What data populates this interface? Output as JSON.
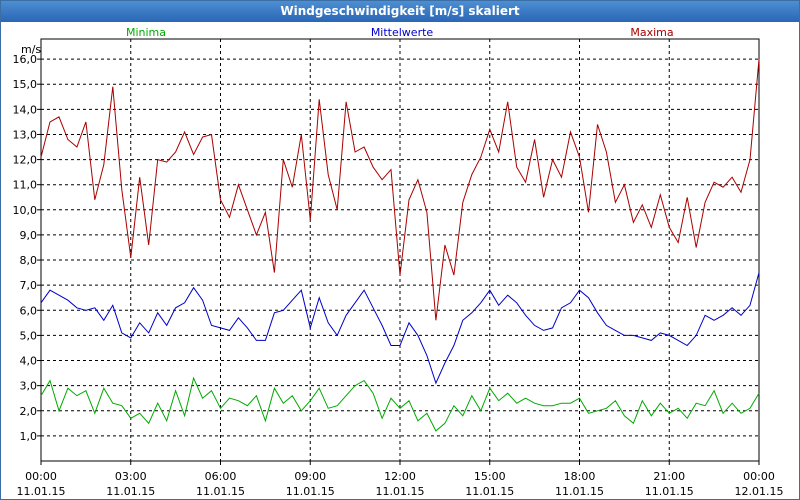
{
  "window": {
    "title": "Windgeschwindigkeit [m/s] skaliert"
  },
  "chart_data": {
    "type": "line",
    "title": "Windgeschwindigkeit [m/s] skaliert",
    "ylabel": "m/s",
    "ylim": [
      0,
      16.8
    ],
    "xlim": [
      0,
      24
    ],
    "y_ticks": [
      1,
      2,
      3,
      4,
      5,
      6,
      7,
      8,
      9,
      10,
      11,
      12,
      13,
      14,
      15,
      16
    ],
    "y_tick_labels": [
      "1,0",
      "2,0",
      "3,0",
      "4,0",
      "5,0",
      "6,0",
      "7,0",
      "8,0",
      "9,0",
      "10,0",
      "11,0",
      "12,0",
      "13,0",
      "14,0",
      "15,0",
      "16,0"
    ],
    "x_ticks": [
      {
        "time": "00:00",
        "date": "11.01.15"
      },
      {
        "time": "03:00",
        "date": "11.01.15"
      },
      {
        "time": "06:00",
        "date": "11.01.15"
      },
      {
        "time": "09:00",
        "date": "11.01.15"
      },
      {
        "time": "12:00",
        "date": "11.01.15"
      },
      {
        "time": "15:00",
        "date": "11.01.15"
      },
      {
        "time": "18:00",
        "date": "11.01.15"
      },
      {
        "time": "21:00",
        "date": "11.01.15"
      },
      {
        "time": "00:00",
        "date": "12.01.15"
      }
    ],
    "grid": true,
    "series": [
      {
        "name": "Minima",
        "color": "#00aa00",
        "points": [
          [
            0,
            2.6
          ],
          [
            0.3,
            3.2
          ],
          [
            0.6,
            2.0
          ],
          [
            0.9,
            2.9
          ],
          [
            1.2,
            2.6
          ],
          [
            1.5,
            2.8
          ],
          [
            1.8,
            1.9
          ],
          [
            2.1,
            2.9
          ],
          [
            2.4,
            2.3
          ],
          [
            2.7,
            2.2
          ],
          [
            3.0,
            1.7
          ],
          [
            3.3,
            1.9
          ],
          [
            3.6,
            1.5
          ],
          [
            3.9,
            2.3
          ],
          [
            4.2,
            1.6
          ],
          [
            4.5,
            2.8
          ],
          [
            4.8,
            1.8
          ],
          [
            5.1,
            3.3
          ],
          [
            5.4,
            2.5
          ],
          [
            5.7,
            2.8
          ],
          [
            6.0,
            2.1
          ],
          [
            6.3,
            2.5
          ],
          [
            6.6,
            2.4
          ],
          [
            6.9,
            2.2
          ],
          [
            7.2,
            2.6
          ],
          [
            7.5,
            1.6
          ],
          [
            7.8,
            2.9
          ],
          [
            8.1,
            2.3
          ],
          [
            8.4,
            2.6
          ],
          [
            8.7,
            2.0
          ],
          [
            9.0,
            2.4
          ],
          [
            9.3,
            2.9
          ],
          [
            9.6,
            2.1
          ],
          [
            9.9,
            2.2
          ],
          [
            10.2,
            2.6
          ],
          [
            10.5,
            3.0
          ],
          [
            10.8,
            3.2
          ],
          [
            11.1,
            2.7
          ],
          [
            11.4,
            1.7
          ],
          [
            11.7,
            2.5
          ],
          [
            12.0,
            2.1
          ],
          [
            12.3,
            2.4
          ],
          [
            12.6,
            1.6
          ],
          [
            12.9,
            1.9
          ],
          [
            13.2,
            1.2
          ],
          [
            13.5,
            1.5
          ],
          [
            13.8,
            2.2
          ],
          [
            14.1,
            1.8
          ],
          [
            14.4,
            2.6
          ],
          [
            14.7,
            2.0
          ],
          [
            15.0,
            2.9
          ],
          [
            15.3,
            2.4
          ],
          [
            15.6,
            2.7
          ],
          [
            15.9,
            2.3
          ],
          [
            16.2,
            2.5
          ],
          [
            16.5,
            2.3
          ],
          [
            16.8,
            2.2
          ],
          [
            17.1,
            2.2
          ],
          [
            17.4,
            2.3
          ],
          [
            17.7,
            2.3
          ],
          [
            18.0,
            2.5
          ],
          [
            18.3,
            1.9
          ],
          [
            18.6,
            2.0
          ],
          [
            18.9,
            2.1
          ],
          [
            19.2,
            2.4
          ],
          [
            19.5,
            1.8
          ],
          [
            19.8,
            1.5
          ],
          [
            20.1,
            2.4
          ],
          [
            20.4,
            1.8
          ],
          [
            20.7,
            2.3
          ],
          [
            21.0,
            1.9
          ],
          [
            21.3,
            2.1
          ],
          [
            21.6,
            1.7
          ],
          [
            21.9,
            2.3
          ],
          [
            22.2,
            2.2
          ],
          [
            22.5,
            2.8
          ],
          [
            22.8,
            1.9
          ],
          [
            23.1,
            2.3
          ],
          [
            23.4,
            1.9
          ],
          [
            23.7,
            2.1
          ],
          [
            24.0,
            2.7
          ]
        ]
      },
      {
        "name": "Mittelwerte",
        "color": "#0000c8",
        "points": [
          [
            0,
            6.3
          ],
          [
            0.3,
            6.8
          ],
          [
            0.6,
            6.6
          ],
          [
            0.9,
            6.4
          ],
          [
            1.2,
            6.1
          ],
          [
            1.5,
            6.0
          ],
          [
            1.8,
            6.1
          ],
          [
            2.1,
            5.6
          ],
          [
            2.4,
            6.2
          ],
          [
            2.7,
            5.1
          ],
          [
            3.0,
            4.9
          ],
          [
            3.3,
            5.5
          ],
          [
            3.6,
            5.1
          ],
          [
            3.9,
            5.9
          ],
          [
            4.2,
            5.4
          ],
          [
            4.5,
            6.1
          ],
          [
            4.8,
            6.3
          ],
          [
            5.1,
            6.9
          ],
          [
            5.4,
            6.4
          ],
          [
            5.7,
            5.4
          ],
          [
            6.0,
            5.3
          ],
          [
            6.3,
            5.2
          ],
          [
            6.6,
            5.7
          ],
          [
            6.9,
            5.3
          ],
          [
            7.2,
            4.8
          ],
          [
            7.5,
            4.8
          ],
          [
            7.8,
            5.9
          ],
          [
            8.1,
            6.0
          ],
          [
            8.4,
            6.4
          ],
          [
            8.7,
            6.8
          ],
          [
            9.0,
            5.3
          ],
          [
            9.3,
            6.5
          ],
          [
            9.6,
            5.5
          ],
          [
            9.9,
            5.0
          ],
          [
            10.2,
            5.8
          ],
          [
            10.5,
            6.3
          ],
          [
            10.8,
            6.8
          ],
          [
            11.1,
            6.1
          ],
          [
            11.4,
            5.4
          ],
          [
            11.7,
            4.6
          ],
          [
            12.0,
            4.6
          ],
          [
            12.3,
            5.5
          ],
          [
            12.6,
            5.0
          ],
          [
            12.9,
            4.2
          ],
          [
            13.2,
            3.1
          ],
          [
            13.5,
            3.9
          ],
          [
            13.8,
            4.6
          ],
          [
            14.1,
            5.6
          ],
          [
            14.4,
            5.9
          ],
          [
            14.7,
            6.3
          ],
          [
            15.0,
            6.8
          ],
          [
            15.3,
            6.2
          ],
          [
            15.6,
            6.6
          ],
          [
            15.9,
            6.3
          ],
          [
            16.2,
            5.8
          ],
          [
            16.5,
            5.4
          ],
          [
            16.8,
            5.2
          ],
          [
            17.1,
            5.3
          ],
          [
            17.4,
            6.1
          ],
          [
            17.7,
            6.3
          ],
          [
            18.0,
            6.8
          ],
          [
            18.3,
            6.5
          ],
          [
            18.6,
            5.9
          ],
          [
            18.9,
            5.4
          ],
          [
            19.2,
            5.2
          ],
          [
            19.5,
            5.0
          ],
          [
            19.8,
            5.0
          ],
          [
            20.1,
            4.9
          ],
          [
            20.4,
            4.8
          ],
          [
            20.7,
            5.1
          ],
          [
            21.0,
            5.0
          ],
          [
            21.3,
            4.8
          ],
          [
            21.6,
            4.6
          ],
          [
            21.9,
            5.0
          ],
          [
            22.2,
            5.8
          ],
          [
            22.5,
            5.6
          ],
          [
            22.8,
            5.8
          ],
          [
            23.1,
            6.1
          ],
          [
            23.4,
            5.8
          ],
          [
            23.7,
            6.2
          ],
          [
            24.0,
            7.5
          ]
        ]
      },
      {
        "name": "Maxima",
        "color": "#aa0000",
        "points": [
          [
            0,
            12.1
          ],
          [
            0.3,
            13.5
          ],
          [
            0.6,
            13.7
          ],
          [
            0.9,
            12.8
          ],
          [
            1.2,
            12.5
          ],
          [
            1.5,
            13.5
          ],
          [
            1.8,
            10.4
          ],
          [
            2.1,
            11.8
          ],
          [
            2.4,
            14.9
          ],
          [
            2.7,
            10.8
          ],
          [
            3.0,
            8.1
          ],
          [
            3.3,
            11.3
          ],
          [
            3.6,
            8.6
          ],
          [
            3.9,
            12.0
          ],
          [
            4.2,
            11.9
          ],
          [
            4.5,
            12.3
          ],
          [
            4.8,
            13.1
          ],
          [
            5.1,
            12.2
          ],
          [
            5.4,
            12.9
          ],
          [
            5.7,
            13.0
          ],
          [
            6.0,
            10.4
          ],
          [
            6.3,
            9.7
          ],
          [
            6.6,
            11.0
          ],
          [
            6.9,
            10.0
          ],
          [
            7.2,
            9.0
          ],
          [
            7.5,
            9.9
          ],
          [
            7.8,
            7.5
          ],
          [
            8.1,
            12.0
          ],
          [
            8.4,
            10.9
          ],
          [
            8.7,
            13.0
          ],
          [
            9.0,
            9.6
          ],
          [
            9.3,
            14.4
          ],
          [
            9.6,
            11.4
          ],
          [
            9.9,
            10.0
          ],
          [
            10.2,
            14.3
          ],
          [
            10.5,
            12.3
          ],
          [
            10.8,
            12.5
          ],
          [
            11.1,
            11.7
          ],
          [
            11.4,
            11.2
          ],
          [
            11.7,
            11.6
          ],
          [
            12.0,
            7.4
          ],
          [
            12.3,
            10.4
          ],
          [
            12.6,
            11.2
          ],
          [
            12.9,
            9.9
          ],
          [
            13.2,
            5.6
          ],
          [
            13.5,
            8.6
          ],
          [
            13.8,
            7.4
          ],
          [
            14.1,
            10.3
          ],
          [
            14.4,
            11.4
          ],
          [
            14.7,
            12.1
          ],
          [
            15.0,
            13.2
          ],
          [
            15.3,
            12.3
          ],
          [
            15.6,
            14.3
          ],
          [
            15.9,
            11.7
          ],
          [
            16.2,
            11.1
          ],
          [
            16.5,
            12.8
          ],
          [
            16.8,
            10.5
          ],
          [
            17.1,
            12.0
          ],
          [
            17.4,
            11.3
          ],
          [
            17.7,
            13.1
          ],
          [
            18.0,
            12.1
          ],
          [
            18.3,
            9.9
          ],
          [
            18.6,
            13.4
          ],
          [
            18.9,
            12.3
          ],
          [
            19.2,
            10.3
          ],
          [
            19.5,
            11.0
          ],
          [
            19.8,
            9.5
          ],
          [
            20.1,
            10.2
          ],
          [
            20.4,
            9.3
          ],
          [
            20.7,
            10.6
          ],
          [
            21.0,
            9.3
          ],
          [
            21.3,
            8.7
          ],
          [
            21.6,
            10.5
          ],
          [
            21.9,
            8.5
          ],
          [
            22.2,
            10.3
          ],
          [
            22.5,
            11.1
          ],
          [
            22.8,
            10.9
          ],
          [
            23.1,
            11.3
          ],
          [
            23.4,
            10.7
          ],
          [
            23.7,
            12.0
          ],
          [
            24.0,
            16.0
          ]
        ]
      }
    ]
  }
}
